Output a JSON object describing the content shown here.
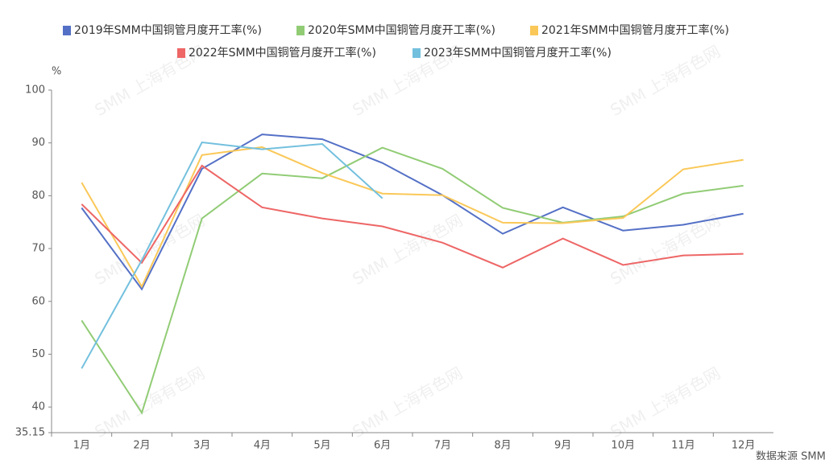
{
  "chart_data": {
    "type": "line",
    "y_unit": "%",
    "source": "数据来源 SMM",
    "watermark": "SMM 上海有色网",
    "categories": [
      "1月",
      "2月",
      "3月",
      "4月",
      "5月",
      "6月",
      "7月",
      "8月",
      "9月",
      "10月",
      "11月",
      "12月"
    ],
    "series": [
      {
        "name": "2019年SMM中国铜管月度开工率(%)",
        "color": "#5470c6",
        "values": [
          77.7,
          62.3,
          85.1,
          91.6,
          90.7,
          86.2,
          80.1,
          72.8,
          77.8,
          73.4,
          74.5,
          76.6
        ]
      },
      {
        "name": "2020年SMM中国铜管月度开工率(%)",
        "color": "#91cc75",
        "values": [
          56.4,
          38.9,
          75.7,
          84.2,
          83.3,
          89.1,
          85.1,
          77.7,
          74.9,
          76.1,
          80.4,
          81.9
        ]
      },
      {
        "name": "2021年SMM中国铜管月度开工率(%)",
        "color": "#fac858",
        "values": [
          82.5,
          62.8,
          87.7,
          89.2,
          84.3,
          80.4,
          80.1,
          74.9,
          74.8,
          75.8,
          85.0,
          86.8
        ]
      },
      {
        "name": "2022年SMM中国铜管月度开工率(%)",
        "color": "#ee6666",
        "values": [
          78.4,
          67.3,
          85.7,
          77.8,
          75.7,
          74.2,
          71.1,
          66.4,
          71.9,
          66.9,
          68.7,
          69.0
        ]
      },
      {
        "name": "2023年SMM中国铜管月度开工率(%)",
        "color": "#73c0de",
        "values": [
          47.3,
          67.8,
          90.1,
          88.8,
          89.8,
          79.5,
          null,
          null,
          null,
          null,
          null,
          null
        ]
      }
    ],
    "ylim": [
      35.15,
      100
    ],
    "yticks": [
      35.15,
      40,
      50,
      60,
      70,
      80,
      90,
      100
    ],
    "grid": false
  }
}
